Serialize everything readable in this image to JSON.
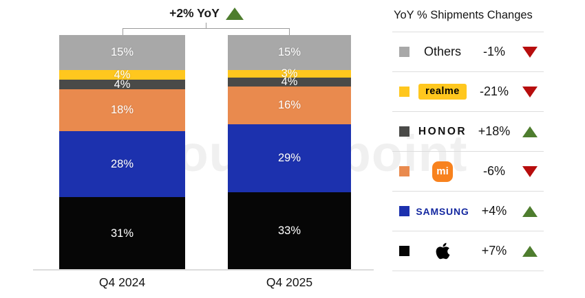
{
  "watermark": "Counterpoint",
  "annotation": {
    "label": "+2% YoY",
    "direction": "up"
  },
  "chart_data": {
    "type": "bar",
    "subtype": "100%-stacked-column",
    "categories": [
      "Q4 2024",
      "Q4 2025"
    ],
    "series": [
      {
        "name": "Apple",
        "values": [
          31,
          33
        ],
        "color": "#060606"
      },
      {
        "name": "Samsung",
        "values": [
          28,
          29
        ],
        "color": "#1c31ae"
      },
      {
        "name": "Xiaomi",
        "values": [
          18,
          16
        ],
        "color": "#e98a4e"
      },
      {
        "name": "HONOR",
        "values": [
          4,
          4
        ],
        "color": "#4a4a48"
      },
      {
        "name": "realme",
        "values": [
          4,
          3
        ],
        "color": "#ffc71e"
      },
      {
        "name": "Others",
        "values": [
          15,
          15
        ],
        "color": "#a8a8a8"
      }
    ],
    "unit": "%",
    "total_change": "+2% YoY",
    "ylim": [
      0,
      100
    ],
    "grid": false,
    "legend_position": "right"
  },
  "bars": [
    {
      "category": "Q4 2024",
      "segments": [
        {
          "brand": "Others",
          "label": "15%",
          "pct": 15,
          "color": "#a8a8a8"
        },
        {
          "brand": "realme",
          "label": "4%",
          "pct": 4,
          "color": "#ffc71e"
        },
        {
          "brand": "HONOR",
          "label": "4%",
          "pct": 4,
          "color": "#4a4a48"
        },
        {
          "brand": "Xiaomi",
          "label": "18%",
          "pct": 18,
          "color": "#e98a4e"
        },
        {
          "brand": "Samsung",
          "label": "28%",
          "pct": 28,
          "color": "#1c31ae"
        },
        {
          "brand": "Apple",
          "label": "31%",
          "pct": 31,
          "color": "#060606"
        }
      ]
    },
    {
      "category": "Q4 2025",
      "segments": [
        {
          "brand": "Others",
          "label": "15%",
          "pct": 15,
          "color": "#a8a8a8"
        },
        {
          "brand": "realme",
          "label": "3%",
          "pct": 3,
          "color": "#ffc71e"
        },
        {
          "brand": "HONOR",
          "label": "4%",
          "pct": 4,
          "color": "#4a4a48"
        },
        {
          "brand": "Xiaomi",
          "label": "16%",
          "pct": 16,
          "color": "#e98a4e"
        },
        {
          "brand": "Samsung",
          "label": "29%",
          "pct": 29,
          "color": "#1c31ae"
        },
        {
          "brand": "Apple",
          "label": "33%",
          "pct": 33,
          "color": "#060606"
        }
      ]
    }
  ],
  "legend": {
    "title": "YoY % Shipments Changes",
    "rows": [
      {
        "brand": "Others",
        "display": "Others",
        "change": "-1%",
        "direction": "down",
        "swatch": "#a8a8a8"
      },
      {
        "brand": "realme",
        "display": "realme",
        "change": "-21%",
        "direction": "down",
        "swatch": "#ffc71e"
      },
      {
        "brand": "HONOR",
        "display": "HONOR",
        "change": "+18%",
        "direction": "up",
        "swatch": "#4a4a48"
      },
      {
        "brand": "Xiaomi",
        "display": "mi",
        "change": "-6%",
        "direction": "down",
        "swatch": "#e98a4e"
      },
      {
        "brand": "Samsung",
        "display": "SAMSUNG",
        "change": "+4%",
        "direction": "up",
        "swatch": "#1c31ae"
      },
      {
        "brand": "Apple",
        "display": "",
        "change": "+7%",
        "direction": "up",
        "swatch": "#060606"
      }
    ]
  },
  "colors": {
    "up_triangle": "#4e7d2e",
    "down_triangle": "#b70d0d",
    "axis_line": "#dcdcdc",
    "bracket": "#9a9a9a"
  }
}
